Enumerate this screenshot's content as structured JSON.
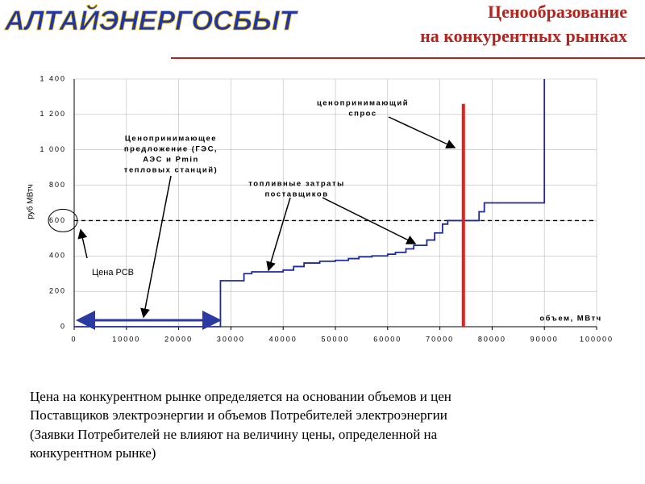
{
  "logo": "АЛТАЙЭНЕРГОСБЫТ",
  "title_lines": [
    "Ценообразование",
    "на конкурентных рынках"
  ],
  "chart_data": {
    "type": "line",
    "y_label": "руб МВтч",
    "x": [
      0,
      28000,
      28000,
      32500,
      32500,
      34000,
      34000,
      40000,
      40000,
      42000,
      42000,
      44000,
      44000,
      47000,
      47000,
      50000,
      50000,
      52500,
      52500,
      54500,
      54500,
      57000,
      57000,
      60000,
      60000,
      61500,
      61500,
      63500,
      63500,
      65000,
      65000,
      67500,
      67500,
      69000,
      69000,
      70500,
      70500,
      71500,
      71500,
      77500,
      77500,
      78500,
      78500,
      90000,
      90000
    ],
    "series": [
      {
        "color": "#1f2a9a",
        "values": [
          0,
          0,
          260,
          260,
          300,
          300,
          310,
          310,
          320,
          320,
          340,
          340,
          360,
          360,
          370,
          370,
          375,
          375,
          385,
          385,
          395,
          395,
          400,
          400,
          410,
          410,
          420,
          420,
          440,
          440,
          460,
          460,
          490,
          490,
          530,
          530,
          580,
          580,
          600,
          600,
          650,
          650,
          700,
          700,
          1400
        ]
      }
    ],
    "demand_line": {
      "x": 74500,
      "top": 1260,
      "color": "#e0201c"
    },
    "reference_y": 600,
    "xlim": [
      0,
      100000
    ],
    "ylim": [
      0,
      1400
    ],
    "xticks": [
      0,
      10000,
      20000,
      30000,
      40000,
      50000,
      60000,
      70000,
      80000,
      90000,
      100000
    ],
    "yticks": [
      0,
      200,
      400,
      600,
      800,
      {
        "value": 1000,
        "label": "1 000"
      },
      {
        "value": 1200,
        "label": "1 200"
      },
      {
        "value": 1400,
        "label": "1 400"
      }
    ],
    "grid": true,
    "annotations": [
      {
        "lines": [
          "ценопринимающий",
          "спрос"
        ]
      },
      {
        "lines": [
          "Ценопринимающее",
          "предложение (ГЭС,",
          "АЭС и Pmin",
          "тепловых станций)"
        ]
      },
      {
        "lines": [
          "топливные затраты",
          "поставщиков"
        ]
      },
      {
        "lines": [
          "объем, МВтч"
        ]
      },
      {
        "lines": [
          "Цена РСВ"
        ]
      }
    ]
  },
  "footer_lines": [
    "Цена на конкурентном рынке определяется на основании объемов и цен",
    "Поставщиков электроэнергии и объемов Потребителей электроэнергии",
    "(Заявки Потребителей не влияют на величину цены, определенной на",
    "конкурентном рынке)"
  ]
}
